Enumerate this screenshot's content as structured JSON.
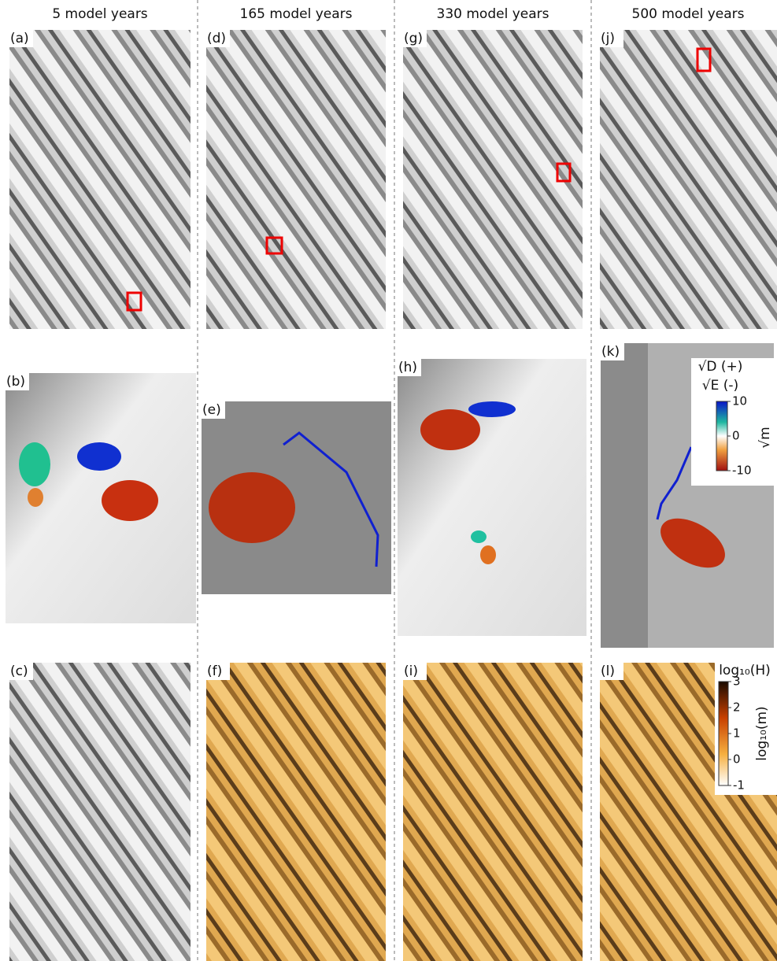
{
  "columns": [
    "5 model years",
    "165 model years",
    "330 model years",
    "500 model years"
  ],
  "panels": [
    "(a)",
    "(b)",
    "(c)",
    "(d)",
    "(e)",
    "(f)",
    "(g)",
    "(h)",
    "(i)",
    "(j)",
    "(k)",
    "(l)"
  ],
  "colorbars": [
    {
      "title": [
        "√D (+)",
        "√E (-)"
      ],
      "unit": "√m",
      "lim": [
        -10,
        10
      ],
      "ticks": [
        10,
        0,
        -10
      ]
    },
    {
      "title": [
        "log₁₀(H)"
      ],
      "unit": "log₁₀(m)",
      "lim": [
        -1,
        3
      ],
      "ticks": [
        3,
        2,
        1,
        0,
        -1
      ]
    }
  ]
}
